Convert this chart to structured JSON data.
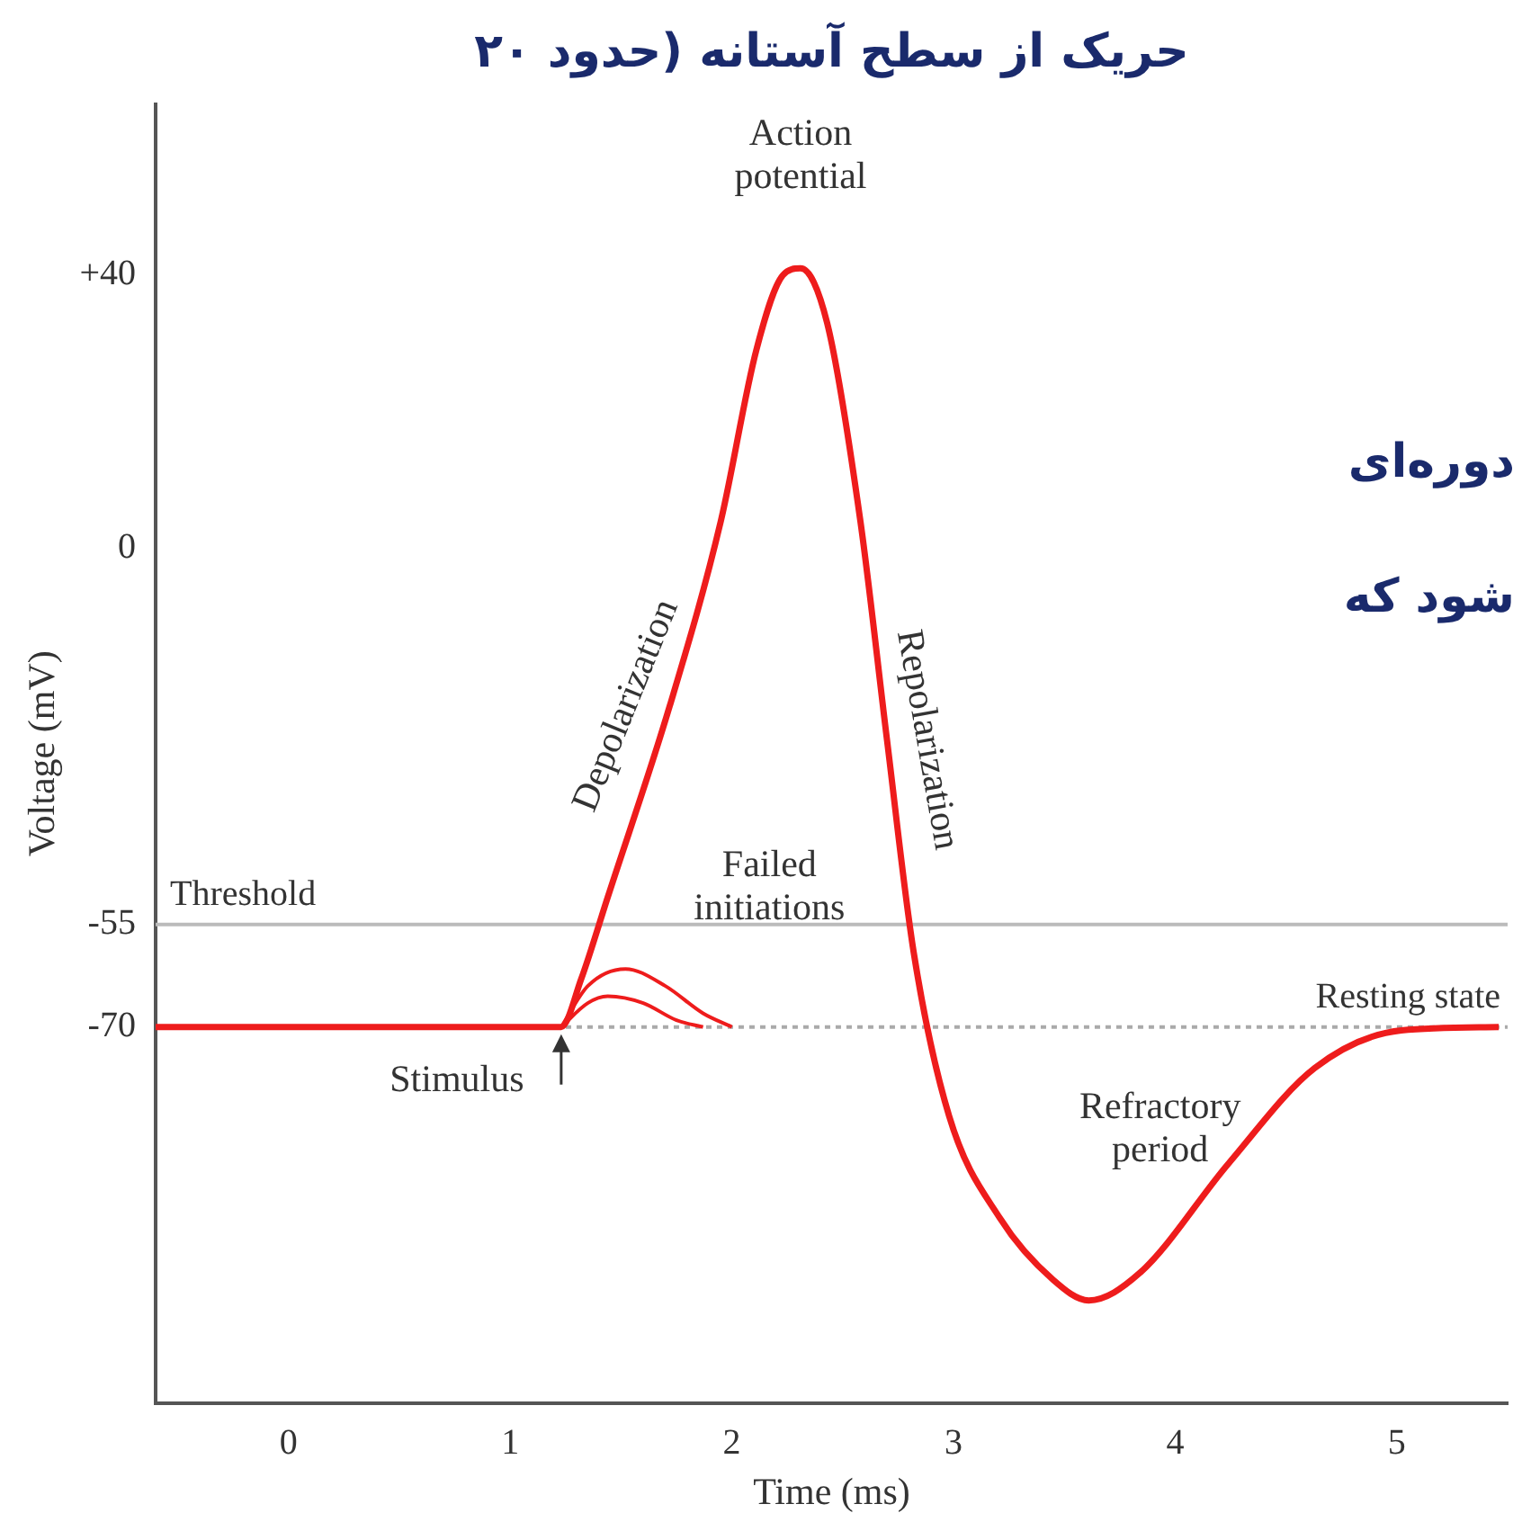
{
  "chart_data": {
    "type": "line",
    "xlabel": "Time (ms)",
    "ylabel": "Voltage (mV)",
    "xlim": [
      -0.6,
      5.5
    ],
    "ylim": [
      -125,
      65
    ],
    "xticks": [
      0,
      1,
      2,
      3,
      4,
      5
    ],
    "yticks": [
      {
        "value": 40,
        "label": "+40"
      },
      0,
      -55,
      -70
    ],
    "grid": false,
    "legend": false,
    "marker": "none",
    "line_style": "solid",
    "series": [
      {
        "color": "#ee1c1c",
        "x": [
          -0.6,
          1.23,
          1.32,
          1.44,
          1.72,
          1.95,
          2.11,
          2.23,
          2.31,
          2.43,
          2.58,
          2.7,
          2.82,
          2.98,
          3.21,
          3.45,
          3.61,
          3.84,
          4.24,
          4.63,
          5.02,
          5.46
        ],
        "values": [
          -70,
          -70,
          -63,
          -51,
          -23,
          4,
          29,
          40,
          41,
          33,
          4,
          -28,
          -59,
          -83,
          -98,
          -107,
          -110,
          -106,
          -90,
          -76,
          -70.5,
          -70
        ]
      },
      {
        "color": "#ee1c1c",
        "x": [
          1.23,
          1.35,
          1.52,
          1.7,
          1.87,
          2.0
        ],
        "values": [
          -70,
          -64,
          -61.5,
          -64,
          -68,
          -70
        ]
      },
      {
        "color": "#ee1c1c",
        "x": [
          1.23,
          1.35,
          1.44,
          1.6,
          1.75,
          1.87
        ],
        "values": [
          -70,
          -66.5,
          -65.5,
          -66.5,
          -69,
          -70
        ]
      }
    ],
    "ref_lines": [
      {
        "axis": "y",
        "value": -55,
        "label": "Threshold",
        "color": "#bbbbbb",
        "line_style": "solid"
      },
      {
        "axis": "y",
        "value": -70,
        "label": "Resting state",
        "color": "#aaaaaa",
        "line_style": "dotted"
      }
    ],
    "annotations": [
      {
        "text": "Action potential",
        "x": 2.31,
        "y": 41
      },
      {
        "text": "Depolarization",
        "x": 1.72,
        "y": -23
      },
      {
        "text": "Repolarization",
        "x": 2.7,
        "y": -28
      },
      {
        "text": "Failed initiations",
        "x": 1.52,
        "y": -61.5
      },
      {
        "text": "Stimulus",
        "x": 1.23,
        "y": -70
      },
      "حریک از سطح آستانه (حدود ۲۰",
      "دوره‌ای",
      "شود که",
      "Refractory period"
    ]
  }
}
